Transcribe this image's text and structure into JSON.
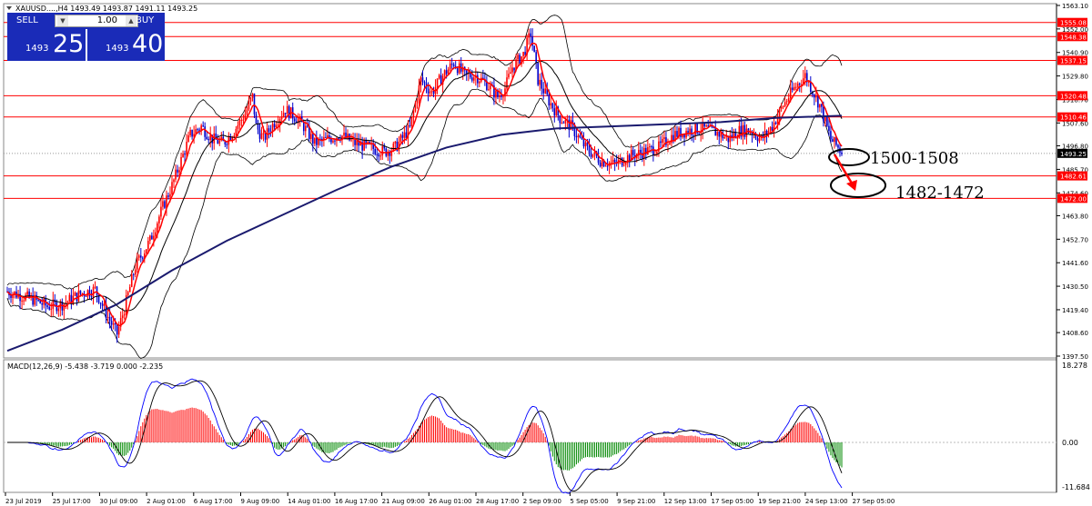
{
  "header": {
    "symbol_info": "XAUUSD....,H4  1493.49 1493.87 1491.11 1493.25"
  },
  "trade_panel": {
    "sell_label": "SELL",
    "buy_label": "BUY",
    "lot": "1.00",
    "sell_small": "1493",
    "sell_big": "25",
    "buy_small": "1493",
    "buy_big": "40"
  },
  "price_axis": {
    "ticks": [
      "1563.10",
      "1552.00",
      "1540.90",
      "1529.80",
      "1518.70",
      "1507.60",
      "1496.80",
      "1485.70",
      "1474.60",
      "1463.80",
      "1452.70",
      "1441.60",
      "1430.50",
      "1419.40",
      "1408.60",
      "1397.50"
    ],
    "labels": [
      {
        "text": "1555.08",
        "color": "#ff0000",
        "value": 1555.08
      },
      {
        "text": "1548.38",
        "color": "#ff0000",
        "value": 1548.38
      },
      {
        "text": "1537.15",
        "color": "#ff0000",
        "value": 1537.15
      },
      {
        "text": "1520.48",
        "color": "#ff0000",
        "value": 1520.48
      },
      {
        "text": "1510.46",
        "color": "#ff0000",
        "value": 1510.46
      },
      {
        "text": "1493.25",
        "color": "#000000",
        "value": 1493.25
      },
      {
        "text": "1482.61",
        "color": "#ff0000",
        "value": 1482.61
      },
      {
        "text": "1472.00",
        "color": "#ff0000",
        "value": 1472.0
      }
    ]
  },
  "annotations": [
    {
      "text": "1500-1508"
    },
    {
      "text": "1482-1472"
    }
  ],
  "macd": {
    "label": "MACD(12,26,9) -5.438 -3.719 0.000 -2.235",
    "ticks": [
      "18.278",
      "0.00",
      "-11.684"
    ]
  },
  "time_axis": {
    "labels": [
      "23 Jul 2019",
      "25 Jul 17:00",
      "30 Jul 09:00",
      "2 Aug 01:00",
      "6 Aug 17:00",
      "9 Aug 09:00",
      "14 Aug 01:00",
      "16 Aug 17:00",
      "21 Aug 09:00",
      "26 Aug 01:00",
      "28 Aug 17:00",
      "2 Sep 09:00",
      "5 Sep 05:00",
      "9 Sep 21:00",
      "12 Sep 13:00",
      "17 Sep 05:00",
      "19 Sep 21:00",
      "24 Sep 13:00",
      "27 Sep 05:00"
    ]
  },
  "colors": {
    "bull": "#ff0000",
    "bear": "#0000cc",
    "ma_long": "#1a1a6e",
    "level": "#ff0000",
    "macd_pos": "#ff0000",
    "macd_neg": "#008800"
  },
  "chart_data": {
    "type": "candlestick",
    "price_range": [
      1397.5,
      1563.1
    ],
    "levels": [
      1555.08,
      1548.38,
      1537.15,
      1520.48,
      1510.46,
      1482.61,
      1472.0
    ],
    "close_path": [
      [
        0,
        1428
      ],
      [
        8,
        1426
      ],
      [
        15,
        1424
      ],
      [
        22,
        1421
      ],
      [
        30,
        1422
      ],
      [
        40,
        1427
      ],
      [
        48,
        1429
      ],
      [
        55,
        1416
      ],
      [
        60,
        1408
      ],
      [
        64,
        1420
      ],
      [
        70,
        1440
      ],
      [
        78,
        1452
      ],
      [
        85,
        1468
      ],
      [
        90,
        1478
      ],
      [
        95,
        1490
      ],
      [
        100,
        1502
      ],
      [
        106,
        1506
      ],
      [
        112,
        1500
      ],
      [
        118,
        1498
      ],
      [
        124,
        1504
      ],
      [
        130,
        1512
      ],
      [
        134,
        1520
      ],
      [
        136,
        1506
      ],
      [
        140,
        1500
      ],
      [
        146,
        1508
      ],
      [
        152,
        1514
      ],
      [
        158,
        1510
      ],
      [
        162,
        1506
      ],
      [
        168,
        1498
      ],
      [
        175,
        1500
      ],
      [
        182,
        1502
      ],
      [
        190,
        1498
      ],
      [
        198,
        1496
      ],
      [
        206,
        1494
      ],
      [
        212,
        1496
      ],
      [
        220,
        1505
      ],
      [
        226,
        1528
      ],
      [
        232,
        1522
      ],
      [
        238,
        1530
      ],
      [
        244,
        1536
      ],
      [
        250,
        1530
      ],
      [
        256,
        1530
      ],
      [
        262,
        1526
      ],
      [
        268,
        1520
      ],
      [
        272,
        1524
      ],
      [
        276,
        1534
      ],
      [
        282,
        1540
      ],
      [
        286,
        1550
      ],
      [
        290,
        1528
      ],
      [
        296,
        1518
      ],
      [
        302,
        1510
      ],
      [
        308,
        1506
      ],
      [
        316,
        1496
      ],
      [
        324,
        1490
      ],
      [
        332,
        1488
      ],
      [
        340,
        1492
      ],
      [
        348,
        1494
      ],
      [
        356,
        1496
      ],
      [
        364,
        1502
      ],
      [
        372,
        1504
      ],
      [
        380,
        1505
      ],
      [
        388,
        1503
      ],
      [
        394,
        1500
      ],
      [
        400,
        1504
      ],
      [
        406,
        1504
      ],
      [
        412,
        1500
      ],
      [
        418,
        1506
      ],
      [
        424,
        1516
      ],
      [
        430,
        1524
      ],
      [
        436,
        1530
      ],
      [
        440,
        1523
      ],
      [
        444,
        1516
      ],
      [
        450,
        1500
      ],
      [
        456,
        1494
      ]
    ],
    "ma_long_path": [
      [
        0,
        1400
      ],
      [
        30,
        1410
      ],
      [
        60,
        1422
      ],
      [
        90,
        1438
      ],
      [
        120,
        1452
      ],
      [
        150,
        1464
      ],
      [
        180,
        1476
      ],
      [
        210,
        1487
      ],
      [
        240,
        1496
      ],
      [
        270,
        1502
      ],
      [
        300,
        1505
      ],
      [
        330,
        1506
      ],
      [
        360,
        1507
      ],
      [
        390,
        1508
      ],
      [
        420,
        1510
      ],
      [
        456,
        1511
      ]
    ],
    "x_range": [
      0,
      456
    ]
  }
}
